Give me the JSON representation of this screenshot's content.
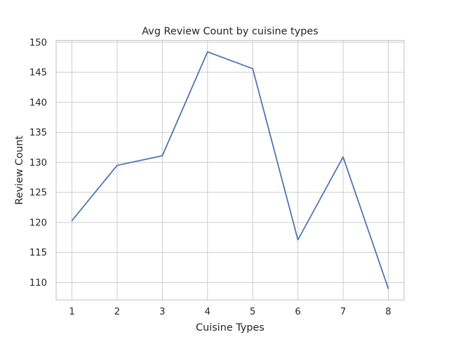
{
  "chart_data": {
    "type": "line",
    "title": "Avg Review Count by cuisine types",
    "xlabel": "Cuisine Types",
    "ylabel": "Review Count",
    "x": [
      1,
      2,
      3,
      4,
      5,
      6,
      7,
      8
    ],
    "series": [
      {
        "values": [
          120.3,
          129.5,
          131.1,
          148.4,
          145.6,
          117.1,
          130.9,
          109.0
        ],
        "color": "#4c72b0"
      }
    ],
    "xlim": [
      0.65,
      8.35
    ],
    "ylim": [
      107.1,
      150.3
    ],
    "xticks": [
      "1",
      "2",
      "3",
      "4",
      "5",
      "6",
      "7",
      "8"
    ],
    "yticks": [
      "110",
      "115",
      "120",
      "125",
      "130",
      "135",
      "140",
      "145",
      "150"
    ],
    "grid": true
  }
}
